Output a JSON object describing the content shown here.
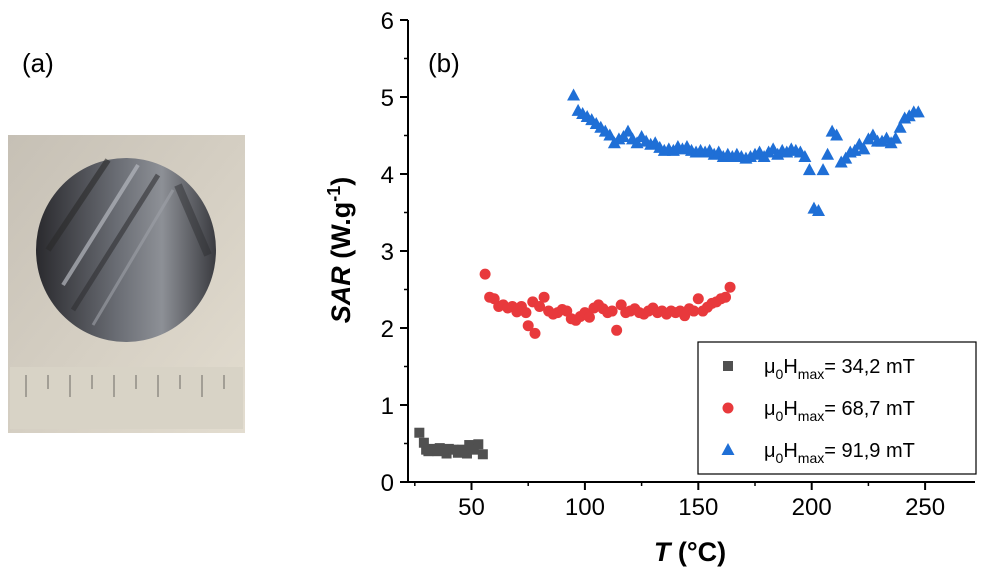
{
  "panel_a_label": "(a)",
  "panel_b_label": "(b)",
  "photo": {
    "description_icon": "sample-disc-photo"
  },
  "colors": {
    "series1": "#505050",
    "series2": "#e8393c",
    "series3": "#1f6fd6",
    "axis": "#000000"
  },
  "chart_data": {
    "type": "scatter",
    "xlabel": "T (°C)",
    "ylabel": "SAR (W.g-1)",
    "xlim": [
      22,
      272
    ],
    "ylim": [
      0,
      6
    ],
    "xticks": [
      50,
      100,
      150,
      200,
      250
    ],
    "yticks": [
      0,
      1,
      2,
      3,
      4,
      5,
      6
    ],
    "legend_position": "bottom-right",
    "series": [
      {
        "name": "μ0Hmax= 34,2 mT",
        "marker": "square",
        "points": [
          [
            27,
            0.64
          ],
          [
            29,
            0.51
          ],
          [
            30,
            0.42
          ],
          [
            31,
            0.4
          ],
          [
            33,
            0.43
          ],
          [
            35,
            0.4
          ],
          [
            36,
            0.44
          ],
          [
            38,
            0.41
          ],
          [
            39,
            0.37
          ],
          [
            40,
            0.43
          ],
          [
            42,
            0.42
          ],
          [
            44,
            0.38
          ],
          [
            45,
            0.4
          ],
          [
            46,
            0.42
          ],
          [
            48,
            0.37
          ],
          [
            49,
            0.48
          ],
          [
            50,
            0.44
          ],
          [
            51,
            0.42
          ],
          [
            53,
            0.49
          ],
          [
            55,
            0.36
          ]
        ]
      },
      {
        "name": "μ0Hmax= 68,7 mT",
        "marker": "circle",
        "points": [
          [
            56,
            2.7
          ],
          [
            58,
            2.4
          ],
          [
            60,
            2.38
          ],
          [
            62,
            2.28
          ],
          [
            64,
            2.3
          ],
          [
            66,
            2.26
          ],
          [
            68,
            2.28
          ],
          [
            70,
            2.21
          ],
          [
            72,
            2.28
          ],
          [
            74,
            2.2
          ],
          [
            75,
            2.03
          ],
          [
            77,
            2.34
          ],
          [
            78,
            1.93
          ],
          [
            80,
            2.28
          ],
          [
            82,
            2.4
          ],
          [
            84,
            2.22
          ],
          [
            86,
            2.18
          ],
          [
            88,
            2.2
          ],
          [
            90,
            2.24
          ],
          [
            92,
            2.22
          ],
          [
            94,
            2.12
          ],
          [
            96,
            2.1
          ],
          [
            98,
            2.15
          ],
          [
            100,
            2.2
          ],
          [
            102,
            2.14
          ],
          [
            104,
            2.26
          ],
          [
            106,
            2.3
          ],
          [
            108,
            2.25
          ],
          [
            110,
            2.2
          ],
          [
            112,
            2.22
          ],
          [
            114,
            1.97
          ],
          [
            116,
            2.3
          ],
          [
            118,
            2.2
          ],
          [
            120,
            2.22
          ],
          [
            122,
            2.25
          ],
          [
            124,
            2.2
          ],
          [
            126,
            2.18
          ],
          [
            128,
            2.22
          ],
          [
            130,
            2.26
          ],
          [
            132,
            2.2
          ],
          [
            134,
            2.22
          ],
          [
            136,
            2.18
          ],
          [
            138,
            2.22
          ],
          [
            140,
            2.2
          ],
          [
            142,
            2.22
          ],
          [
            144,
            2.16
          ],
          [
            146,
            2.25
          ],
          [
            148,
            2.22
          ],
          [
            150,
            2.38
          ],
          [
            152,
            2.22
          ],
          [
            154,
            2.27
          ],
          [
            156,
            2.32
          ],
          [
            158,
            2.34
          ],
          [
            160,
            2.38
          ],
          [
            162,
            2.4
          ],
          [
            164,
            2.53
          ]
        ]
      },
      {
        "name": "μ0Hmax= 91,9 mT",
        "marker": "triangle",
        "points": [
          [
            95,
            5.02
          ],
          [
            97,
            4.82
          ],
          [
            99,
            4.78
          ],
          [
            101,
            4.74
          ],
          [
            103,
            4.7
          ],
          [
            105,
            4.65
          ],
          [
            107,
            4.6
          ],
          [
            109,
            4.55
          ],
          [
            111,
            4.5
          ],
          [
            113,
            4.4
          ],
          [
            115,
            4.45
          ],
          [
            117,
            4.48
          ],
          [
            119,
            4.55
          ],
          [
            121,
            4.45
          ],
          [
            123,
            4.4
          ],
          [
            125,
            4.48
          ],
          [
            127,
            4.42
          ],
          [
            129,
            4.38
          ],
          [
            131,
            4.4
          ],
          [
            133,
            4.34
          ],
          [
            135,
            4.3
          ],
          [
            137,
            4.32
          ],
          [
            139,
            4.3
          ],
          [
            141,
            4.35
          ],
          [
            143,
            4.32
          ],
          [
            145,
            4.35
          ],
          [
            147,
            4.3
          ],
          [
            149,
            4.28
          ],
          [
            151,
            4.3
          ],
          [
            153,
            4.28
          ],
          [
            155,
            4.3
          ],
          [
            157,
            4.25
          ],
          [
            159,
            4.28
          ],
          [
            161,
            4.22
          ],
          [
            163,
            4.25
          ],
          [
            165,
            4.22
          ],
          [
            167,
            4.25
          ],
          [
            169,
            4.22
          ],
          [
            171,
            4.2
          ],
          [
            173,
            4.22
          ],
          [
            175,
            4.25
          ],
          [
            177,
            4.28
          ],
          [
            179,
            4.22
          ],
          [
            181,
            4.28
          ],
          [
            183,
            4.32
          ],
          [
            185,
            4.25
          ],
          [
            187,
            4.3
          ],
          [
            189,
            4.28
          ],
          [
            191,
            4.32
          ],
          [
            193,
            4.3
          ],
          [
            195,
            4.28
          ],
          [
            197,
            4.22
          ],
          [
            199,
            4.05
          ],
          [
            201,
            3.55
          ],
          [
            203,
            3.52
          ],
          [
            205,
            4.05
          ],
          [
            207,
            4.25
          ],
          [
            209,
            4.55
          ],
          [
            211,
            4.5
          ],
          [
            213,
            4.15
          ],
          [
            215,
            4.2
          ],
          [
            217,
            4.28
          ],
          [
            219,
            4.3
          ],
          [
            221,
            4.38
          ],
          [
            223,
            4.32
          ],
          [
            225,
            4.45
          ],
          [
            227,
            4.5
          ],
          [
            229,
            4.42
          ],
          [
            231,
            4.42
          ],
          [
            233,
            4.46
          ],
          [
            235,
            4.4
          ],
          [
            237,
            4.46
          ],
          [
            239,
            4.6
          ],
          [
            241,
            4.72
          ],
          [
            243,
            4.75
          ],
          [
            245,
            4.8
          ],
          [
            247,
            4.8
          ]
        ]
      }
    ]
  }
}
